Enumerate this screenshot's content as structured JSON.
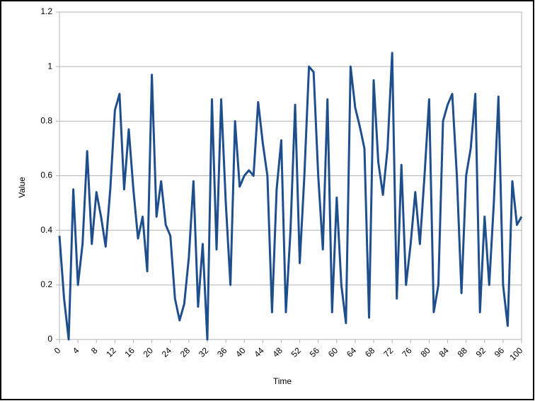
{
  "chart_data": {
    "type": "line",
    "x_label": "Time",
    "y_label": "Value",
    "x": [
      0,
      1,
      2,
      3,
      4,
      5,
      6,
      7,
      8,
      9,
      10,
      11,
      12,
      13,
      14,
      15,
      16,
      17,
      18,
      19,
      20,
      21,
      22,
      23,
      24,
      25,
      26,
      27,
      28,
      29,
      30,
      31,
      32,
      33,
      34,
      35,
      36,
      37,
      38,
      39,
      40,
      41,
      42,
      43,
      44,
      45,
      46,
      47,
      48,
      49,
      50,
      51,
      52,
      53,
      54,
      55,
      56,
      57,
      58,
      59,
      60,
      61,
      62,
      63,
      64,
      65,
      66,
      67,
      68,
      69,
      70,
      71,
      72,
      73,
      74,
      75,
      76,
      77,
      78,
      79,
      80,
      81,
      82,
      83,
      84,
      85,
      86,
      87,
      88,
      89,
      90,
      91,
      92,
      93,
      94,
      95,
      96,
      97,
      98,
      99,
      100
    ],
    "series": [
      {
        "name": "Value",
        "color": "#1f4e8c",
        "values": [
          0.38,
          0.15,
          0.0,
          0.55,
          0.2,
          0.35,
          0.69,
          0.35,
          0.54,
          0.45,
          0.34,
          0.55,
          0.84,
          0.9,
          0.55,
          0.77,
          0.55,
          0.37,
          0.45,
          0.25,
          0.97,
          0.45,
          0.58,
          0.42,
          0.38,
          0.15,
          0.07,
          0.13,
          0.3,
          0.58,
          0.12,
          0.35,
          0.0,
          0.88,
          0.33,
          0.88,
          0.5,
          0.2,
          0.8,
          0.56,
          0.6,
          0.62,
          0.6,
          0.87,
          0.72,
          0.6,
          0.1,
          0.55,
          0.73,
          0.1,
          0.4,
          0.86,
          0.28,
          0.6,
          1.0,
          0.98,
          0.6,
          0.33,
          0.88,
          0.1,
          0.52,
          0.2,
          0.06,
          1.0,
          0.85,
          0.78,
          0.7,
          0.08,
          0.95,
          0.65,
          0.53,
          0.7,
          1.05,
          0.15,
          0.64,
          0.2,
          0.35,
          0.54,
          0.35,
          0.6,
          0.88,
          0.1,
          0.2,
          0.8,
          0.86,
          0.9,
          0.6,
          0.17,
          0.6,
          0.7,
          0.9,
          0.1,
          0.45,
          0.2,
          0.5,
          0.89,
          0.2,
          0.05,
          0.58,
          0.42,
          0.45
        ]
      }
    ],
    "xlim": [
      0,
      100
    ],
    "xticks": [
      0,
      4,
      8,
      12,
      16,
      20,
      24,
      28,
      32,
      36,
      40,
      44,
      48,
      52,
      56,
      60,
      64,
      68,
      72,
      76,
      80,
      84,
      88,
      92,
      96,
      100
    ],
    "ylim": [
      0,
      1.2
    ],
    "yticks": [
      0,
      0.2,
      0.4,
      0.6,
      0.8,
      1,
      1.2
    ],
    "grid": true
  }
}
